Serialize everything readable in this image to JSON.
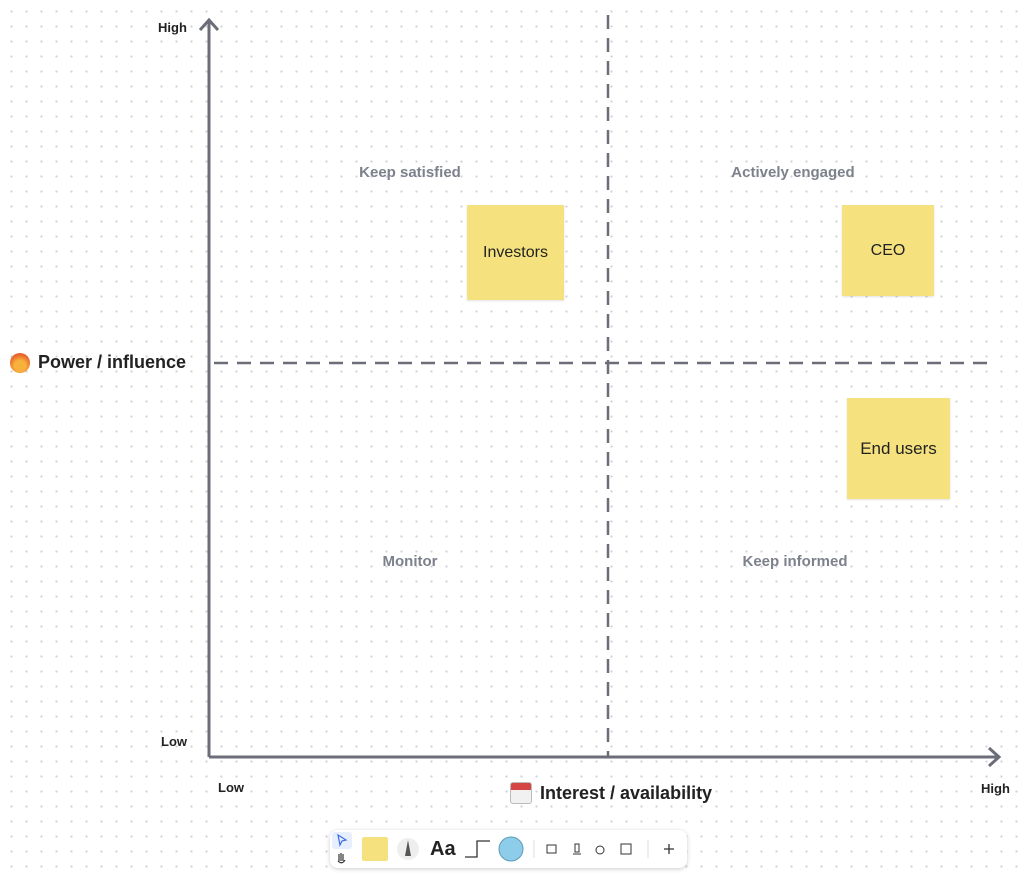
{
  "axes": {
    "y": {
      "label": "Power / influence",
      "high": "High",
      "low": "Low"
    },
    "x": {
      "label": "Interest / availability",
      "high": "High",
      "low": "Low"
    }
  },
  "quadrants": [
    "Keep satisfied",
    "Actively engaged",
    "Monitor",
    "Keep informed"
  ],
  "notes": [
    "Investors",
    "CEO",
    "End users"
  ],
  "toolbar": {
    "text_tool": "Aa"
  }
}
